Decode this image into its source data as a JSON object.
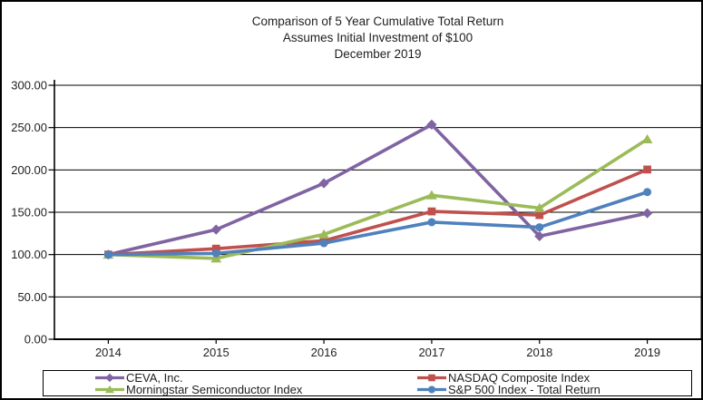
{
  "title": {
    "lines": [
      "Comparison of 5 Year Cumulative Total Return",
      "Assumes Initial Investment of $100",
      "December 2019"
    ]
  },
  "chart_data": {
    "type": "line",
    "title": "Comparison of 5 Year Cumulative Total Return",
    "subtitle": "Assumes Initial Investment of $100",
    "date_label": "December 2019",
    "categories": [
      "2014",
      "2015",
      "2016",
      "2017",
      "2018",
      "2019"
    ],
    "series": [
      {
        "name": "CEVA, Inc.",
        "color": "#8064A2",
        "marker": "diamond",
        "values": [
          100.0,
          129.54,
          184.21,
          253.51,
          121.72,
          148.86
        ]
      },
      {
        "name": "NASDAQ Composite Index",
        "color": "#C0504D",
        "marker": "square",
        "values": [
          100.0,
          106.96,
          116.45,
          150.96,
          146.67,
          200.49
        ]
      },
      {
        "name": "Morningstar Semiconductor Index",
        "color": "#9BBB59",
        "marker": "triangle",
        "values": [
          100.0,
          95.44,
          123.87,
          170.06,
          154.94,
          236.24
        ]
      },
      {
        "name": "S&P 500 Index - Total Return",
        "color": "#4F81BD",
        "marker": "circle",
        "values": [
          100.0,
          101.38,
          113.51,
          138.29,
          132.23,
          173.86
        ]
      }
    ],
    "y_tick_labels": [
      "0.00",
      "50.00",
      "100.00",
      "150.00",
      "200.00",
      "250.00",
      "300.00"
    ],
    "y_tick_step": 50,
    "ylim": [
      0,
      300
    ],
    "grid": true,
    "legend_position": "bottom",
    "axis_color": "#000000",
    "text_color": "#1f1f1f"
  }
}
